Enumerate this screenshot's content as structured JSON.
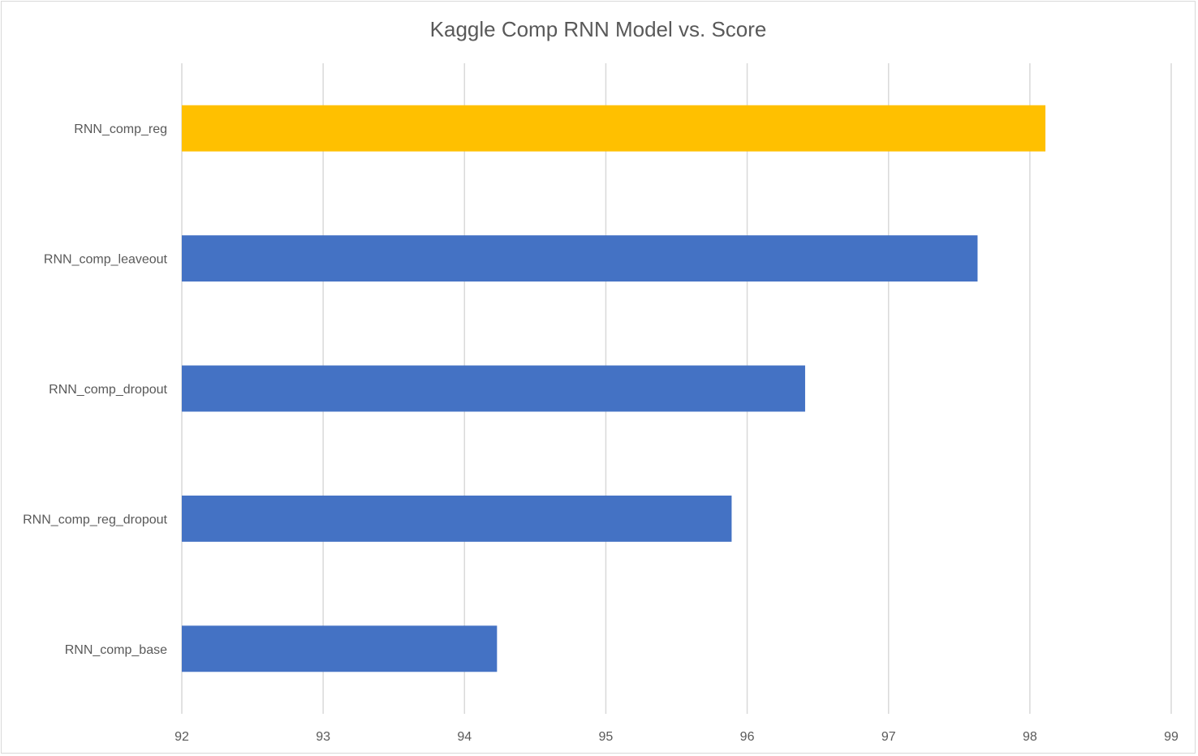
{
  "chart_data": {
    "type": "bar",
    "orientation": "horizontal",
    "title": "Kaggle Comp RNN Model vs. Score",
    "xlabel": "",
    "ylabel": "",
    "categories": [
      "RNN_comp_reg",
      "RNN_comp_leaveout",
      "RNN_comp_dropout",
      "RNN_comp_reg_dropout",
      "RNN_comp_base"
    ],
    "values": [
      98.11,
      97.63,
      96.41,
      95.89,
      94.23
    ],
    "bar_colors": [
      "#FFC000",
      "#4472C4",
      "#4472C4",
      "#4472C4",
      "#4472C4"
    ],
    "xlim": [
      92,
      99
    ],
    "xticks": [
      "92",
      "93",
      "94",
      "95",
      "96",
      "97",
      "98",
      "99"
    ],
    "grid": true,
    "legend": "none"
  },
  "colors": {
    "highlight": "#FFC000",
    "bar": "#4472C4",
    "grid": "#D9D9D9",
    "text": "#595959"
  }
}
